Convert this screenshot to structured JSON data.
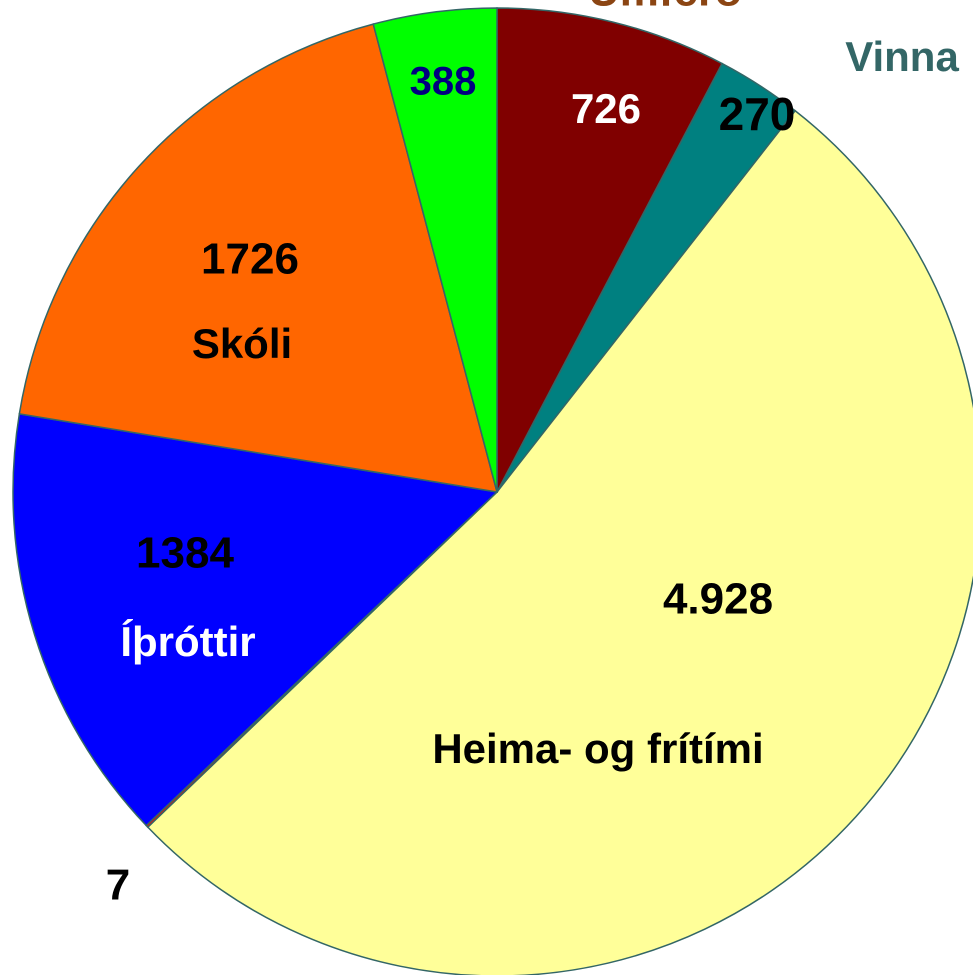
{
  "chart_data": {
    "type": "pie",
    "categories": [
      "Umferð",
      "Vinna",
      "Heima- og frítími",
      null,
      "Íþróttir",
      "Skóli",
      null
    ],
    "values": [
      726,
      270,
      4928,
      7,
      1384,
      1726,
      388
    ],
    "value_labels": [
      "726",
      "270",
      "4.928",
      "7",
      "1384",
      "1726",
      "388"
    ],
    "colors": [
      "#800000",
      "#008080",
      "#ffff99",
      "#ff0000",
      "#0000ff",
      "#ff6600",
      "#00ff00"
    ]
  }
}
